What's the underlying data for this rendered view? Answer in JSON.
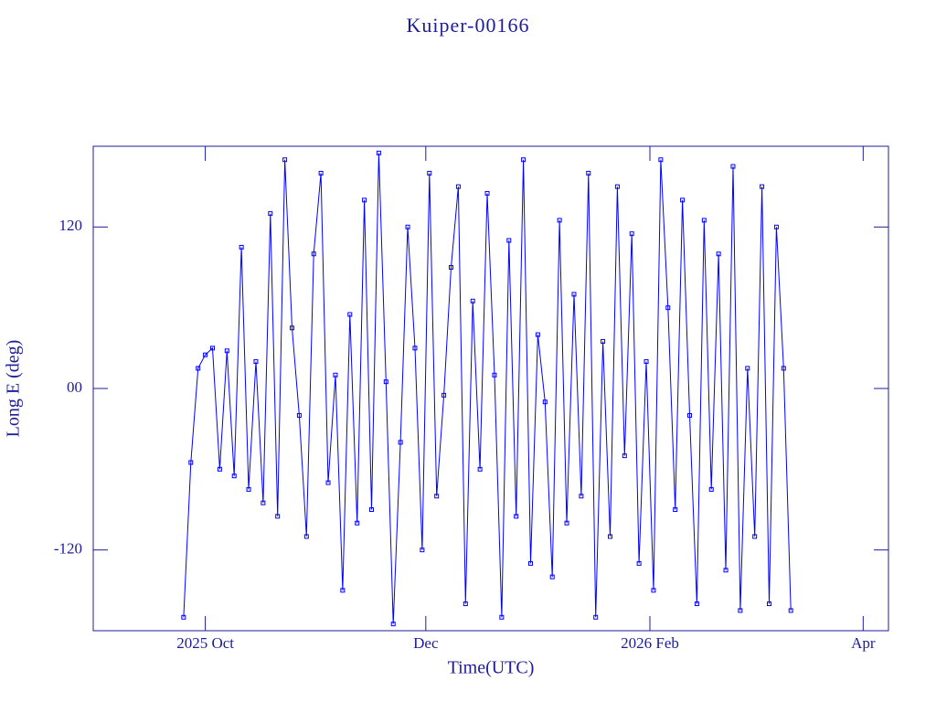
{
  "chart_data": {
    "type": "line",
    "title": "Kuiper-00166",
    "xlabel": "Time(UTC)",
    "ylabel": "Long E (deg)",
    "color": "#0000ff",
    "x": [
      "2025-09-25",
      "2025-09-27",
      "2025-09-29",
      "2025-10-01",
      "2025-10-03",
      "2025-10-05",
      "2025-10-07",
      "2025-10-09",
      "2025-10-11",
      "2025-10-13",
      "2025-10-15",
      "2025-10-17",
      "2025-10-19",
      "2025-10-21",
      "2025-10-23",
      "2025-10-25",
      "2025-10-27",
      "2025-10-29",
      "2025-10-31",
      "2025-11-02",
      "2025-11-04",
      "2025-11-06",
      "2025-11-08",
      "2025-11-10",
      "2025-11-12",
      "2025-11-14",
      "2025-11-16",
      "2025-11-18",
      "2025-11-20",
      "2025-11-22",
      "2025-11-24",
      "2025-11-26",
      "2025-11-28",
      "2025-11-30",
      "2025-12-02",
      "2025-12-04",
      "2025-12-06",
      "2025-12-08",
      "2025-12-10",
      "2025-12-12",
      "2025-12-14",
      "2025-12-16",
      "2025-12-18",
      "2025-12-20",
      "2025-12-22",
      "2025-12-24",
      "2025-12-26",
      "2025-12-28",
      "2025-12-30",
      "2026-01-01",
      "2026-01-03",
      "2026-01-05",
      "2026-01-07",
      "2026-01-09",
      "2026-01-11",
      "2026-01-13",
      "2026-01-15",
      "2026-01-17",
      "2026-01-19",
      "2026-01-21",
      "2026-01-23",
      "2026-01-25",
      "2026-01-27",
      "2026-01-29",
      "2026-01-31",
      "2026-02-02",
      "2026-02-04",
      "2026-02-06",
      "2026-02-08",
      "2026-02-10",
      "2026-02-12",
      "2026-02-14",
      "2026-02-16",
      "2026-02-18",
      "2026-02-20",
      "2026-02-22",
      "2026-02-24",
      "2026-02-26",
      "2026-02-28",
      "2026-03-02",
      "2026-03-04",
      "2026-03-06",
      "2026-03-08",
      "2026-03-10",
      "2026-03-12"
    ],
    "values": [
      -170,
      -55,
      15,
      25,
      30,
      -60,
      28,
      -65,
      105,
      -75,
      20,
      -85,
      130,
      -95,
      170,
      45,
      -20,
      -110,
      100,
      160,
      -70,
      10,
      -150,
      55,
      -100,
      140,
      -90,
      175,
      5,
      -175,
      -40,
      120,
      30,
      -120,
      160,
      -80,
      -5,
      90,
      150,
      -160,
      65,
      -60,
      145,
      10,
      -170,
      110,
      -95,
      170,
      -130,
      40,
      -10,
      -140,
      125,
      -100,
      70,
      -80,
      160,
      -170,
      35,
      -110,
      150,
      -50,
      115,
      -130,
      20,
      -150,
      170,
      60,
      -90,
      140,
      -20,
      -160,
      125,
      -75,
      100,
      -135,
      165,
      -165,
      15,
      -110,
      150,
      -160,
      120,
      15,
      -165
    ],
    "xlim": [
      "2025-08-31",
      "2026-04-08"
    ],
    "xticks": [
      {
        "value": "2025-10-01",
        "label": "2025 Oct"
      },
      {
        "value": "2025-12-01",
        "label": "Dec"
      },
      {
        "value": "2026-02-01",
        "label": "2026 Feb"
      },
      {
        "value": "2026-04-01",
        "label": "Apr"
      }
    ],
    "ylim": [
      -180,
      180
    ],
    "yticks": [
      -120,
      {
        "value": 0,
        "label": "00"
      },
      120
    ]
  }
}
